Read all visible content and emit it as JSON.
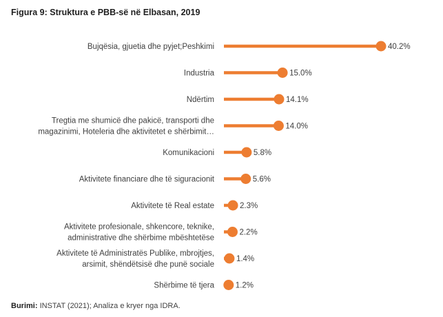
{
  "figure": {
    "title": "Figura 9: Struktura e PBB-së në Elbasan, 2019",
    "source_label": "Burimi:",
    "source_text": "INSTAT (2021); Analiza e kryer nga IDRA."
  },
  "chart_data": {
    "type": "bar",
    "style": "lollipop-horizontal",
    "color": "#ED7D31",
    "categories": [
      [
        "Bujqësia, gjuetia dhe pyjet;Peshkimi"
      ],
      [
        "Industria"
      ],
      [
        "Ndërtim"
      ],
      [
        "Tregtia me shumicë dhe pakicë, transporti dhe",
        "magazinimi, Hoteleria dhe aktivitetet e shërbimit…"
      ],
      [
        "Komunikacioni"
      ],
      [
        "Aktivitete financiare dhe të siguracionit"
      ],
      [
        "Aktivitete të Real estate"
      ],
      [
        "Aktivitete profesionale, shkencore, teknike,",
        "administrative dhe shërbime mbështetëse"
      ],
      [
        "Aktivitete të Administratës Publike, mbrojtjes,",
        "arsimit, shëndëtsisë dhe punë sociale"
      ],
      [
        "Shërbime të tjera"
      ]
    ],
    "values": [
      40.2,
      15.0,
      14.1,
      14.0,
      5.8,
      5.6,
      2.3,
      2.2,
      1.4,
      1.2
    ],
    "value_labels": [
      "40.2%",
      "15.0%",
      "14.1%",
      "14.0%",
      "5.8%",
      "5.6%",
      "2.3%",
      "2.2%",
      "1.4%",
      "1.2%"
    ],
    "xlim": [
      0,
      40.2
    ],
    "grid": false,
    "legend": false
  }
}
